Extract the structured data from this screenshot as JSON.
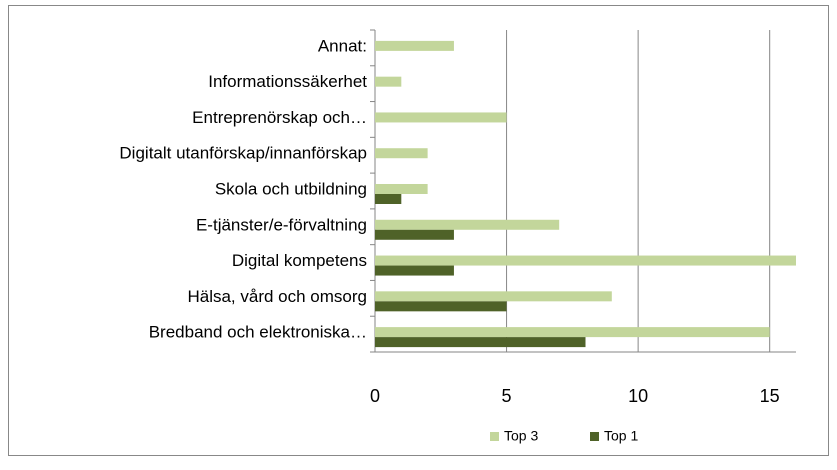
{
  "chart_data": {
    "type": "hbar",
    "categories": [
      "Annat:",
      "Informationssäkerhet",
      "Entreprenörskap och…",
      "Digitalt utanförskap/innanförskap",
      "Skola och utbildning",
      "E-tjänster/e-förvaltning",
      "Digital kompetens",
      "Hälsa, vård och omsorg",
      "Bredband och elektroniska…"
    ],
    "series": [
      {
        "name": "Top 3",
        "color": "#c3d69b",
        "values": [
          3,
          1,
          5,
          2,
          2,
          7,
          16,
          9,
          15
        ]
      },
      {
        "name": "Top 1",
        "color": "#4f6228",
        "values": [
          0,
          0,
          0,
          0,
          1,
          3,
          3,
          5,
          8
        ]
      }
    ],
    "xlim": [
      0,
      16
    ],
    "xticks": [
      0,
      5,
      10,
      15
    ],
    "grid": true,
    "legend": "bottom"
  }
}
